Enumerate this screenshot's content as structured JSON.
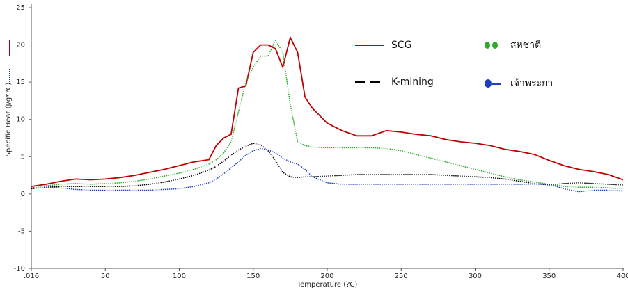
{
  "chart_data": {
    "type": "line",
    "x_label": "Temperature (?C)",
    "y_label": "Specific Heat (J/g*?C)",
    "x": [
      0.016,
      10,
      20,
      30,
      40,
      50,
      60,
      70,
      80,
      90,
      100,
      110,
      120,
      125,
      130,
      135,
      140,
      145,
      150,
      155,
      160,
      165,
      170,
      175,
      180,
      185,
      190,
      200,
      210,
      220,
      230,
      240,
      250,
      260,
      270,
      280,
      290,
      300,
      310,
      320,
      330,
      340,
      350,
      360,
      370,
      380,
      390,
      400
    ],
    "series": [
      {
        "name": "SCG",
        "color": "#c00000",
        "style": "solid",
        "values": [
          1.0,
          1.3,
          1.7,
          2.0,
          1.9,
          2.0,
          2.2,
          2.5,
          2.9,
          3.3,
          3.8,
          4.3,
          4.6,
          6.5,
          7.5,
          8,
          14.2,
          14.5,
          19,
          20,
          20,
          19.5,
          17,
          21,
          19,
          13,
          11.5,
          9.5,
          8.5,
          7.8,
          7.8,
          8.5,
          8.3,
          8,
          7.8,
          7.3,
          7,
          6.8,
          6.5,
          6,
          5.7,
          5.3,
          4.5,
          3.8,
          3.3,
          3,
          2.6,
          1.9
        ]
      },
      {
        "name": "K-mining",
        "color": "#000000",
        "style": "dotted",
        "values": [
          0.7,
          0.9,
          1.0,
          1.0,
          1.0,
          1.0,
          1.0,
          1.1,
          1.3,
          1.6,
          2.0,
          2.5,
          3.2,
          3.7,
          4.4,
          5.2,
          5.9,
          6.4,
          6.8,
          6.6,
          5.8,
          4.5,
          2.9,
          2.3,
          2.2,
          2.3,
          2.3,
          2.4,
          2.5,
          2.6,
          2.6,
          2.6,
          2.6,
          2.6,
          2.6,
          2.5,
          2.4,
          2.3,
          2.2,
          2.0,
          1.7,
          1.4,
          1.2,
          1.4,
          1.5,
          1.4,
          1.3,
          1.2
        ]
      },
      {
        "name": "สหชาติ",
        "color": "#2eaa2e",
        "style": "dotted",
        "values": [
          0.8,
          1.1,
          1.3,
          1.4,
          1.3,
          1.4,
          1.5,
          1.7,
          2.0,
          2.4,
          2.8,
          3.3,
          4.0,
          4.6,
          5.5,
          7,
          11,
          15,
          17,
          18.5,
          18.5,
          20.6,
          19,
          12,
          7,
          6.5,
          6.3,
          6.2,
          6.2,
          6.2,
          6.2,
          6.1,
          5.8,
          5.3,
          4.8,
          4.3,
          3.8,
          3.3,
          2.8,
          2.3,
          1.9,
          1.6,
          1.3,
          1.0,
          0.9,
          0.9,
          0.8,
          0.7
        ]
      },
      {
        "name": "เจ้าพระยา",
        "color": "#1f3fbf",
        "style": "dotted",
        "values": [
          0.8,
          0.9,
          0.8,
          0.6,
          0.5,
          0.5,
          0.5,
          0.5,
          0.5,
          0.6,
          0.7,
          1.0,
          1.5,
          2,
          2.7,
          3.5,
          4.3,
          5.2,
          5.8,
          6.1,
          5.9,
          5.5,
          4.8,
          4.3,
          4.0,
          3.3,
          2.3,
          1.5,
          1.3,
          1.3,
          1.3,
          1.3,
          1.3,
          1.3,
          1.3,
          1.3,
          1.3,
          1.3,
          1.3,
          1.3,
          1.3,
          1.3,
          1.3,
          0.7,
          0.3,
          0.5,
          0.5,
          0.4
        ]
      }
    ],
    "xlim": [
      0.016,
      400
    ],
    "xticks": [
      {
        "value": 0.016,
        "label": ".016"
      },
      50,
      100,
      150,
      200,
      250,
      300,
      350,
      400
    ],
    "ylim": [
      -10,
      25
    ],
    "yticks": [
      -10,
      -5,
      0,
      5,
      10,
      15,
      20,
      25
    ]
  }
}
